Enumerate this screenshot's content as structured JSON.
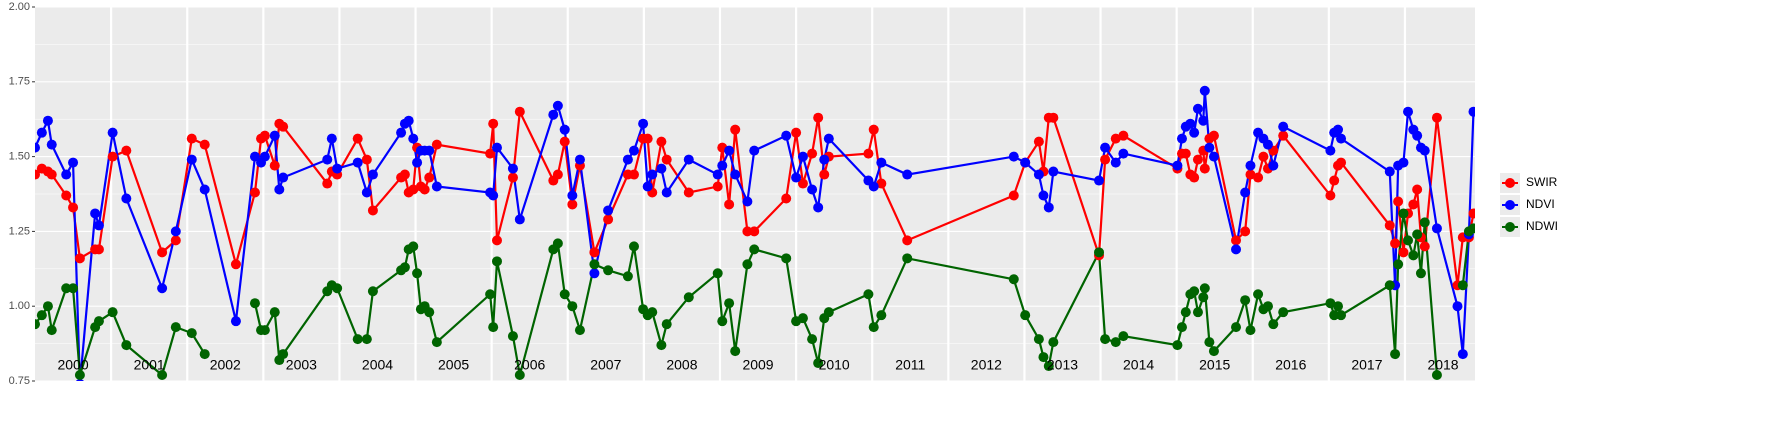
{
  "chart_data": {
    "type": "line",
    "x": [
      2000.0,
      2000.09,
      2000.17,
      2000.22,
      2000.41,
      2000.5,
      2000.59,
      2000.79,
      2000.84,
      2001.02,
      2001.2,
      2001.67,
      2001.85,
      2002.06,
      2002.23,
      2002.64,
      2002.89,
      2002.97,
      2003.02,
      2003.15,
      2003.21,
      2003.26,
      2003.84,
      2003.9,
      2003.97,
      2004.24,
      2004.36,
      2004.44,
      2004.81,
      2004.86,
      2004.91,
      2004.97,
      2005.02,
      2005.07,
      2005.12,
      2005.18,
      2005.28,
      2005.98,
      2006.02,
      2006.07,
      2006.28,
      2006.37,
      2006.81,
      2006.87,
      2006.96,
      2007.06,
      2007.16,
      2007.35,
      2007.53,
      2007.79,
      2007.87,
      2007.99,
      2008.05,
      2008.11,
      2008.23,
      2008.3,
      2008.59,
      2008.97,
      2009.03,
      2009.12,
      2009.2,
      2009.36,
      2009.45,
      2009.87,
      2010.0,
      2010.09,
      2010.21,
      2010.29,
      2010.37,
      2010.43,
      2010.95,
      2011.02,
      2011.12,
      2011.46,
      2012.86,
      2013.01,
      2013.19,
      2013.25,
      2013.32,
      2013.38,
      2013.98,
      2014.06,
      2014.2,
      2014.3,
      2015.01,
      2015.07,
      2015.12,
      2015.18,
      2015.23,
      2015.28,
      2015.35,
      2015.37,
      2015.43,
      2015.49,
      2015.78,
      2015.9,
      2015.97,
      2016.07,
      2016.14,
      2016.2,
      2016.27,
      2016.4,
      2017.02,
      2017.07,
      2017.12,
      2017.16,
      2017.8,
      2017.87,
      2017.91,
      2017.98,
      2018.04,
      2018.11,
      2018.16,
      2018.21,
      2018.26,
      2018.42,
      2018.69,
      2018.76,
      2018.84,
      2018.9
    ],
    "series": [
      {
        "name": "SWIR",
        "color": "#ff0000",
        "values": [
          1.44,
          1.46,
          1.45,
          1.44,
          1.37,
          1.33,
          1.16,
          1.19,
          1.19,
          1.5,
          1.52,
          1.18,
          1.22,
          1.56,
          1.54,
          1.14,
          1.38,
          1.56,
          1.57,
          1.47,
          1.61,
          1.6,
          1.41,
          1.45,
          1.44,
          1.56,
          1.49,
          1.32,
          1.43,
          1.44,
          1.38,
          1.39,
          1.53,
          1.4,
          1.39,
          1.43,
          1.54,
          1.51,
          1.61,
          1.22,
          1.43,
          1.65,
          1.42,
          1.44,
          1.55,
          1.34,
          1.47,
          1.18,
          1.29,
          1.44,
          1.44,
          1.56,
          1.56,
          1.38,
          1.55,
          1.49,
          1.38,
          1.4,
          1.53,
          1.34,
          1.59,
          1.25,
          1.25,
          1.36,
          1.58,
          1.41,
          1.51,
          1.63,
          1.44,
          1.5,
          1.51,
          1.59,
          1.41,
          1.22,
          1.37,
          1.48,
          1.55,
          1.45,
          1.63,
          1.63,
          1.17,
          1.49,
          1.56,
          1.57,
          1.46,
          1.51,
          1.51,
          1.44,
          1.43,
          1.49,
          1.52,
          1.46,
          1.56,
          1.57,
          1.22,
          1.25,
          1.44,
          1.43,
          1.5,
          1.46,
          1.52,
          1.57,
          1.37,
          1.42,
          1.47,
          1.48,
          1.27,
          1.21,
          1.35,
          1.18,
          1.31,
          1.34,
          1.39,
          1.23,
          1.2,
          1.63,
          1.07,
          1.23,
          1.23,
          1.31
        ]
      },
      {
        "name": "NDVI",
        "color": "#0000ff",
        "values": [
          1.53,
          1.58,
          1.62,
          1.54,
          1.44,
          1.48,
          0.74,
          1.31,
          1.27,
          1.58,
          1.36,
          1.06,
          1.25,
          1.49,
          1.39,
          0.95,
          1.5,
          1.48,
          1.5,
          1.57,
          1.39,
          1.43,
          1.49,
          1.56,
          1.46,
          1.48,
          1.38,
          1.44,
          1.58,
          1.61,
          1.62,
          1.56,
          1.48,
          1.52,
          1.52,
          1.52,
          1.4,
          1.38,
          1.37,
          1.53,
          1.46,
          1.29,
          1.64,
          1.67,
          1.59,
          1.37,
          1.49,
          1.11,
          1.32,
          1.49,
          1.52,
          1.61,
          1.4,
          1.44,
          1.46,
          1.38,
          1.49,
          1.44,
          1.47,
          1.52,
          1.44,
          1.35,
          1.52,
          1.57,
          1.43,
          1.5,
          1.39,
          1.33,
          1.49,
          1.56,
          1.42,
          1.4,
          1.48,
          1.44,
          1.5,
          1.48,
          1.44,
          1.37,
          1.33,
          1.45,
          1.42,
          1.53,
          1.48,
          1.51,
          1.47,
          1.56,
          1.6,
          1.61,
          1.58,
          1.66,
          1.62,
          1.72,
          1.53,
          1.5,
          1.19,
          1.38,
          1.47,
          1.58,
          1.56,
          1.54,
          1.47,
          1.6,
          1.52,
          1.58,
          1.59,
          1.56,
          1.45,
          1.07,
          1.47,
          1.48,
          1.65,
          1.59,
          1.57,
          1.53,
          1.52,
          1.26,
          1.0,
          0.84,
          1.24,
          1.65
        ]
      },
      {
        "name": "NDWI",
        "color": "#006400",
        "values": [
          0.94,
          0.97,
          1.0,
          0.92,
          1.06,
          1.06,
          0.77,
          0.93,
          0.95,
          0.98,
          0.87,
          0.77,
          0.93,
          0.91,
          0.84,
          null,
          1.01,
          0.92,
          0.92,
          0.98,
          0.82,
          0.84,
          1.05,
          1.07,
          1.06,
          0.89,
          0.89,
          1.05,
          1.12,
          1.13,
          1.19,
          1.2,
          1.11,
          0.99,
          1.0,
          0.98,
          0.88,
          1.04,
          0.93,
          1.15,
          0.9,
          0.77,
          1.19,
          1.21,
          1.04,
          1.0,
          0.92,
          1.14,
          1.12,
          1.1,
          1.2,
          0.99,
          0.97,
          0.98,
          0.87,
          0.94,
          1.03,
          1.11,
          0.95,
          1.01,
          0.85,
          1.14,
          1.19,
          1.16,
          0.95,
          0.96,
          0.89,
          0.81,
          0.96,
          0.98,
          1.04,
          0.93,
          0.97,
          1.16,
          1.09,
          0.97,
          0.89,
          0.83,
          0.8,
          0.88,
          1.18,
          0.89,
          0.88,
          0.9,
          0.87,
          0.93,
          0.98,
          1.04,
          1.05,
          0.98,
          1.03,
          1.06,
          0.88,
          0.85,
          0.93,
          1.02,
          0.92,
          1.04,
          0.99,
          1.0,
          0.94,
          0.98,
          1.01,
          0.97,
          1.0,
          0.97,
          1.07,
          0.84,
          1.14,
          1.31,
          1.22,
          1.17,
          1.24,
          1.11,
          1.28,
          0.77,
          null,
          1.07,
          1.25,
          1.26
        ]
      }
    ],
    "xlim": [
      2000,
      2018.92
    ],
    "xticks": [
      2001,
      2002,
      2003,
      2004,
      2005,
      2006,
      2007,
      2008,
      2009,
      2010,
      2011,
      2012,
      2013,
      2014,
      2015,
      2016,
      2017,
      2018
    ],
    "ylim": [
      0.75,
      2.0
    ],
    "yticks": [
      0.75,
      {
        "value": 1,
        "label": "1.00"
      },
      1.25,
      {
        "value": 1.5,
        "label": "1.50"
      },
      1.75,
      {
        "value": 2,
        "label": "2.00"
      }
    ],
    "annotations": [
      {
        "text": "2000",
        "x": 2000.5
      },
      {
        "text": "2001",
        "x": 2001.5
      },
      {
        "text": "2002",
        "x": 2002.5
      },
      {
        "text": "2003",
        "x": 2003.5
      },
      {
        "text": "2004",
        "x": 2004.5
      },
      {
        "text": "2005",
        "x": 2005.5
      },
      {
        "text": "2006",
        "x": 2006.5
      },
      {
        "text": "2007",
        "x": 2007.5
      },
      {
        "text": "2008",
        "x": 2008.5
      },
      {
        "text": "2009",
        "x": 2009.5
      },
      {
        "text": "2010",
        "x": 2010.5
      },
      {
        "text": "2011",
        "x": 2011.5
      },
      {
        "text": "2012",
        "x": 2012.5
      },
      {
        "text": "2013",
        "x": 2013.5
      },
      {
        "text": "2014",
        "x": 2014.5
      },
      {
        "text": "2015",
        "x": 2015.5
      },
      {
        "text": "2016",
        "x": 2016.5
      },
      {
        "text": "2017",
        "x": 2017.5
      },
      {
        "text": "2018",
        "x": 2018.5
      }
    ],
    "grid": true,
    "legend": "right"
  }
}
